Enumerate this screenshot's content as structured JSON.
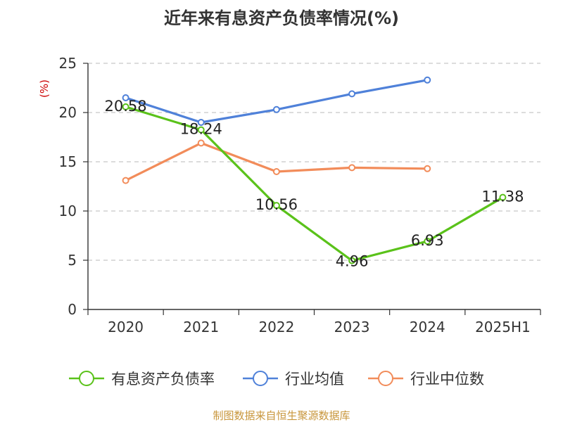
{
  "chart_data": {
    "type": "line",
    "title": "近年来有息资产负债率情况(%)",
    "ylabel": "(%)",
    "xlabel": "",
    "categories": [
      "2020",
      "2021",
      "2022",
      "2023",
      "2024",
      "2025H1"
    ],
    "ylim": [
      0,
      25
    ],
    "yticks": [
      0,
      5,
      10,
      15,
      20,
      25
    ],
    "grid": "horizontal-dashed",
    "legend_position": "bottom",
    "series": [
      {
        "name": "有息资产负债率",
        "color": "#5ac21a",
        "values": [
          20.58,
          18.24,
          10.56,
          4.96,
          6.93,
          11.38
        ],
        "labels": [
          "20.58",
          "18.24",
          "10.56",
          "4.96",
          "6.93",
          "11.38"
        ]
      },
      {
        "name": "行业均值",
        "color": "#4f81d9",
        "values": [
          21.5,
          19.0,
          20.3,
          21.9,
          23.3,
          null
        ]
      },
      {
        "name": "行业中位数",
        "color": "#f28c5a",
        "values": [
          13.1,
          16.9,
          14.0,
          14.4,
          14.3,
          null
        ]
      }
    ]
  },
  "source": "制图数据来自恒生聚源数据库"
}
